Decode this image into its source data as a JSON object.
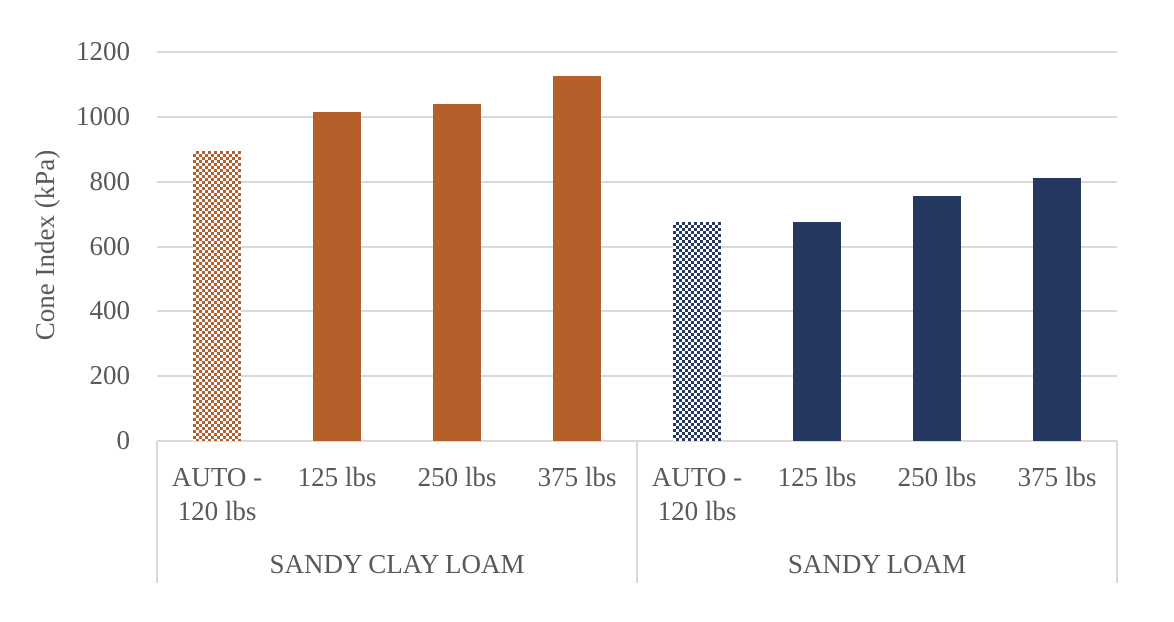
{
  "chart_data": {
    "type": "bar",
    "title": "",
    "ylabel": "Cone Index (kPa)",
    "xlabel": "",
    "ylim": [
      0,
      1200
    ],
    "yticks": [
      "0",
      "200",
      "400",
      "600",
      "800",
      "1000",
      "1200"
    ],
    "grid": true,
    "legend": null,
    "groups": [
      "SANDY CLAY LOAM",
      "SANDY LOAM"
    ],
    "categories": [
      "AUTO - 120 lbs",
      "125 lbs",
      "250 lbs",
      "375 lbs",
      "AUTO - 120 lbs",
      "125 lbs",
      "250 lbs",
      "375 lbs"
    ],
    "values": [
      895,
      1015,
      1040,
      1125,
      675,
      675,
      755,
      810
    ],
    "series": [
      {
        "name": "SANDY CLAY LOAM",
        "categories": [
          "AUTO - 120 lbs",
          "125 lbs",
          "250 lbs",
          "375 lbs"
        ],
        "values": [
          895,
          1015,
          1040,
          1125
        ],
        "color": "#b5602a",
        "patterned_first": true
      },
      {
        "name": "SANDY LOAM",
        "categories": [
          "AUTO - 120 lbs",
          "125 lbs",
          "250 lbs",
          "375 lbs"
        ],
        "values": [
          675,
          675,
          755,
          810
        ],
        "color": "#243861",
        "patterned_first": true
      }
    ]
  },
  "labels": {
    "cat_auto_line1": "AUTO -",
    "cat_auto_line2": "120 lbs",
    "cat_125": "125 lbs",
    "cat_250": "250 lbs",
    "cat_375": "375 lbs"
  }
}
